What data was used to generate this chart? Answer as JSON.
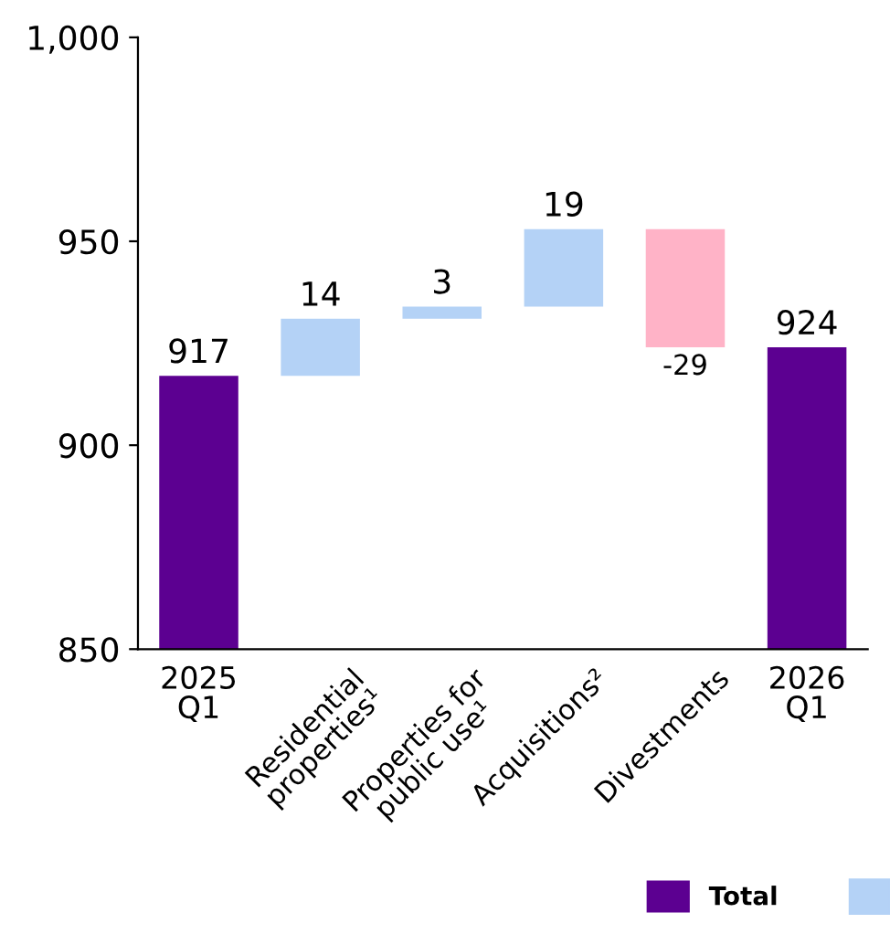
{
  "chart_data": {
    "type": "bar",
    "categories": [
      "2025\nQ1",
      "Residential\nproperties¹",
      "Properties for\npublic use¹",
      "Acquisitions²",
      "Divestments",
      "2026\nQ1"
    ],
    "series": [
      {
        "name": "Total",
        "color": "#5c0091",
        "values": [
          917,
          null,
          null,
          null,
          null,
          924
        ]
      },
      {
        "color": "#b4d2f6",
        "values": [
          null,
          14,
          3,
          19,
          null,
          null
        ],
        "base": [
          null,
          917,
          931,
          934,
          null,
          null
        ]
      },
      {
        "color": "#ffb3c7",
        "values": [
          null,
          null,
          null,
          null,
          -29,
          null
        ],
        "base": [
          null,
          null,
          null,
          null,
          953,
          null
        ]
      }
    ],
    "ylim": [
      850,
      1000
    ],
    "yticks": [
      850,
      900,
      950,
      {
        "value": 1000,
        "label": "1,000"
      }
    ],
    "data_labels": true,
    "grid": false,
    "legend": "bottom right"
  }
}
